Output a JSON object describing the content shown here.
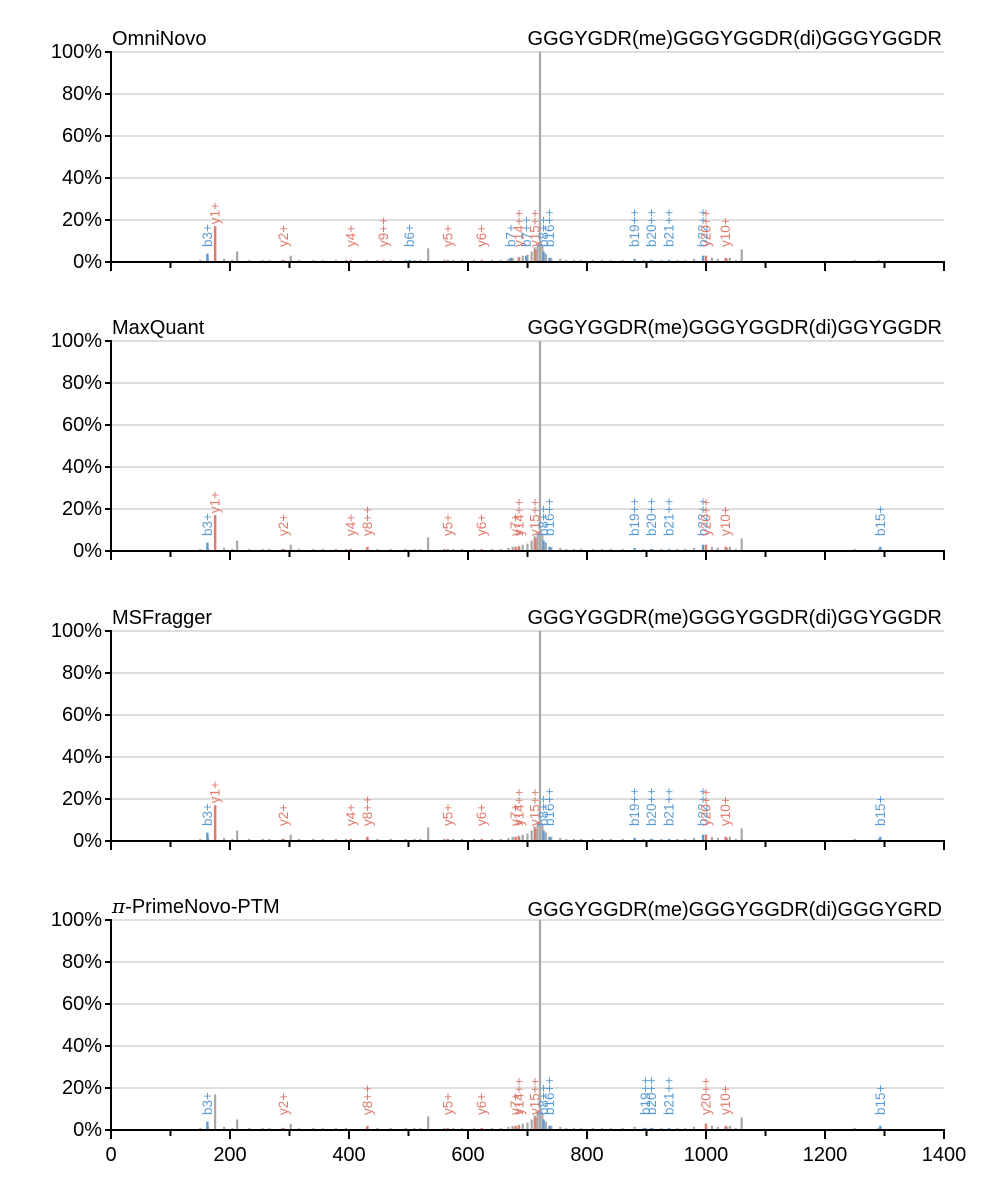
{
  "colors": {
    "b_ion": "#5b9bd5",
    "y_ion": "#e07a6b",
    "unmatched": "#a8a8a8",
    "grid": "#d3d3d3",
    "axis": "#000000"
  },
  "chart_data": {
    "type": "bar",
    "xlim": [
      0,
      1400
    ],
    "ylim": [
      0,
      100
    ],
    "x_ticks": [
      0,
      200,
      400,
      600,
      800,
      1000,
      1200,
      1400
    ],
    "y_ticks": [
      0,
      20,
      40,
      60,
      80,
      100
    ],
    "y_tick_labels": [
      "0%",
      "20%",
      "40%",
      "60%",
      "80%",
      "100%"
    ],
    "grid": "horizontal",
    "unmatched_peaks": [
      [
        150,
        1
      ],
      [
        163,
        1.5
      ],
      [
        175,
        17
      ],
      [
        190,
        1.5
      ],
      [
        204,
        1
      ],
      [
        212,
        5
      ],
      [
        232,
        1
      ],
      [
        255,
        1
      ],
      [
        266,
        1
      ],
      [
        288,
        1
      ],
      [
        302,
        3
      ],
      [
        316,
        1
      ],
      [
        340,
        1
      ],
      [
        356,
        1
      ],
      [
        378,
        1
      ],
      [
        395,
        1
      ],
      [
        430,
        1
      ],
      [
        448,
        1
      ],
      [
        470,
        1
      ],
      [
        495,
        1
      ],
      [
        510,
        1
      ],
      [
        520,
        1
      ],
      [
        533,
        6.5
      ],
      [
        560,
        1
      ],
      [
        575,
        1
      ],
      [
        590,
        1
      ],
      [
        610,
        1
      ],
      [
        640,
        1
      ],
      [
        655,
        1
      ],
      [
        668,
        1.5
      ],
      [
        675,
        2
      ],
      [
        685,
        2.5
      ],
      [
        692,
        3
      ],
      [
        700,
        3.5
      ],
      [
        707,
        5
      ],
      [
        712,
        7
      ],
      [
        717,
        9
      ],
      [
        721,
        100
      ],
      [
        725,
        8
      ],
      [
        731,
        4
      ],
      [
        740,
        2
      ],
      [
        755,
        1.5
      ],
      [
        765,
        1
      ],
      [
        778,
        1
      ],
      [
        790,
        1
      ],
      [
        810,
        1
      ],
      [
        825,
        1
      ],
      [
        840,
        1
      ],
      [
        860,
        1
      ],
      [
        880,
        1.5
      ],
      [
        895,
        1
      ],
      [
        910,
        1
      ],
      [
        925,
        1
      ],
      [
        952,
        1
      ],
      [
        965,
        1
      ],
      [
        980,
        1.5
      ],
      [
        1000,
        3
      ],
      [
        1010,
        2
      ],
      [
        1020,
        1.5
      ],
      [
        1035,
        1.5
      ],
      [
        1040,
        2
      ],
      [
        1050,
        1
      ],
      [
        1060,
        6
      ],
      [
        1250,
        1
      ],
      [
        1290,
        1
      ]
    ],
    "panels": [
      {
        "method": "OmniNovo",
        "sequence": "GGGYGDR(me)GGGYGGDR(di)GGGYGGDR",
        "peaks": [
          {
            "ion": "b3+",
            "type": "b",
            "mz": 162,
            "intensity": 4
          },
          {
            "ion": "y1+",
            "type": "y",
            "mz": 175,
            "intensity": 17
          },
          {
            "ion": "y2+",
            "type": "y",
            "mz": 290,
            "intensity": 1
          },
          {
            "ion": "y4+",
            "type": "y",
            "mz": 403,
            "intensity": 1
          },
          {
            "ion": "y9++",
            "type": "y",
            "mz": 458,
            "intensity": 1
          },
          {
            "ion": "b6+",
            "type": "b",
            "mz": 502,
            "intensity": 1
          },
          {
            "ion": "y5+",
            "type": "y",
            "mz": 566,
            "intensity": 1
          },
          {
            "ion": "y6+",
            "type": "y",
            "mz": 623,
            "intensity": 1
          },
          {
            "ion": "b7+",
            "type": "b",
            "mz": 672,
            "intensity": 2
          },
          {
            "ion": "y14++",
            "type": "y",
            "mz": 686,
            "intensity": 2
          },
          {
            "ion": "b7++",
            "type": "b",
            "mz": 698,
            "intensity": 3
          },
          {
            "ion": "y15++",
            "type": "y",
            "mz": 713,
            "intensity": 6
          },
          {
            "ion": "b8++",
            "type": "b",
            "mz": 727,
            "intensity": 5
          },
          {
            "ion": "b16++",
            "type": "b",
            "mz": 737,
            "intensity": 2
          },
          {
            "ion": "b19++",
            "type": "b",
            "mz": 880,
            "intensity": 1.5
          },
          {
            "ion": "b20++",
            "type": "b",
            "mz": 908,
            "intensity": 1
          },
          {
            "ion": "b21++",
            "type": "b",
            "mz": 938,
            "intensity": 1
          },
          {
            "ion": "b22++",
            "type": "b",
            "mz": 995,
            "intensity": 3
          },
          {
            "ion": "y20++",
            "type": "y",
            "mz": 1000,
            "intensity": 3
          },
          {
            "ion": "y10+",
            "type": "y",
            "mz": 1033,
            "intensity": 2
          }
        ]
      },
      {
        "method": "MaxQuant",
        "sequence": "GGGYGGDR(me)GGGYGGDR(di)GGYGGDR",
        "peaks": [
          {
            "ion": "b3+",
            "type": "b",
            "mz": 162,
            "intensity": 4
          },
          {
            "ion": "y1+",
            "type": "y",
            "mz": 175,
            "intensity": 17
          },
          {
            "ion": "y2+",
            "type": "y",
            "mz": 290,
            "intensity": 1
          },
          {
            "ion": "y4+",
            "type": "y",
            "mz": 403,
            "intensity": 1
          },
          {
            "ion": "y8++",
            "type": "y",
            "mz": 431,
            "intensity": 2
          },
          {
            "ion": "y5+",
            "type": "y",
            "mz": 566,
            "intensity": 1
          },
          {
            "ion": "y6+",
            "type": "y",
            "mz": 623,
            "intensity": 1
          },
          {
            "ion": "y7+",
            "type": "y",
            "mz": 680,
            "intensity": 2
          },
          {
            "ion": "y14++",
            "type": "y",
            "mz": 686,
            "intensity": 2
          },
          {
            "ion": "y15++",
            "type": "y",
            "mz": 713,
            "intensity": 6
          },
          {
            "ion": "b8++",
            "type": "b",
            "mz": 727,
            "intensity": 5
          },
          {
            "ion": "b16++",
            "type": "b",
            "mz": 737,
            "intensity": 2
          },
          {
            "ion": "b19++",
            "type": "b",
            "mz": 880,
            "intensity": 1.5
          },
          {
            "ion": "b20++",
            "type": "b",
            "mz": 908,
            "intensity": 1
          },
          {
            "ion": "b21++",
            "type": "b",
            "mz": 938,
            "intensity": 1
          },
          {
            "ion": "b22++",
            "type": "b",
            "mz": 995,
            "intensity": 3
          },
          {
            "ion": "y20++",
            "type": "y",
            "mz": 1000,
            "intensity": 3
          },
          {
            "ion": "y10+",
            "type": "y",
            "mz": 1033,
            "intensity": 2
          },
          {
            "ion": "b15+",
            "type": "b",
            "mz": 1293,
            "intensity": 2
          }
        ]
      },
      {
        "method": "MSFragger",
        "sequence": "GGGYGGDR(me)GGGYGGDR(di)GGYGGDR",
        "peaks": [
          {
            "ion": "b3+",
            "type": "b",
            "mz": 162,
            "intensity": 4
          },
          {
            "ion": "y1+",
            "type": "y",
            "mz": 175,
            "intensity": 17
          },
          {
            "ion": "y2+",
            "type": "y",
            "mz": 290,
            "intensity": 1
          },
          {
            "ion": "y4+",
            "type": "y",
            "mz": 403,
            "intensity": 1
          },
          {
            "ion": "y8++",
            "type": "y",
            "mz": 431,
            "intensity": 2
          },
          {
            "ion": "y5+",
            "type": "y",
            "mz": 566,
            "intensity": 1
          },
          {
            "ion": "y6+",
            "type": "y",
            "mz": 623,
            "intensity": 1
          },
          {
            "ion": "y7+",
            "type": "y",
            "mz": 680,
            "intensity": 2
          },
          {
            "ion": "y14++",
            "type": "y",
            "mz": 686,
            "intensity": 2
          },
          {
            "ion": "y15++",
            "type": "y",
            "mz": 713,
            "intensity": 6
          },
          {
            "ion": "b8++",
            "type": "b",
            "mz": 727,
            "intensity": 5
          },
          {
            "ion": "b16++",
            "type": "b",
            "mz": 737,
            "intensity": 2
          },
          {
            "ion": "b19++",
            "type": "b",
            "mz": 880,
            "intensity": 1.5
          },
          {
            "ion": "b20++",
            "type": "b",
            "mz": 908,
            "intensity": 1
          },
          {
            "ion": "b21++",
            "type": "b",
            "mz": 938,
            "intensity": 1
          },
          {
            "ion": "b22++",
            "type": "b",
            "mz": 995,
            "intensity": 3
          },
          {
            "ion": "y20++",
            "type": "y",
            "mz": 1000,
            "intensity": 3
          },
          {
            "ion": "y10+",
            "type": "y",
            "mz": 1033,
            "intensity": 2
          },
          {
            "ion": "b15+",
            "type": "b",
            "mz": 1293,
            "intensity": 2
          }
        ]
      },
      {
        "method": "π-PrimeNovo-PTM",
        "method_prefix": "π",
        "method_suffix": "-PrimeNovo-PTM",
        "sequence": "GGGYGGDR(me)GGGYGGDR(di)GGGYGRD",
        "peaks": [
          {
            "ion": "b3+",
            "type": "b",
            "mz": 162,
            "intensity": 4
          },
          {
            "ion": "y2+",
            "type": "y",
            "mz": 290,
            "intensity": 1
          },
          {
            "ion": "y8++",
            "type": "y",
            "mz": 431,
            "intensity": 2
          },
          {
            "ion": "y5+",
            "type": "y",
            "mz": 566,
            "intensity": 1
          },
          {
            "ion": "y6+",
            "type": "y",
            "mz": 623,
            "intensity": 1
          },
          {
            "ion": "y7+",
            "type": "y",
            "mz": 680,
            "intensity": 2
          },
          {
            "ion": "y14++",
            "type": "y",
            "mz": 686,
            "intensity": 2
          },
          {
            "ion": "y15++",
            "type": "y",
            "mz": 713,
            "intensity": 6
          },
          {
            "ion": "b8++",
            "type": "b",
            "mz": 727,
            "intensity": 5
          },
          {
            "ion": "b16++",
            "type": "b",
            "mz": 737,
            "intensity": 2
          },
          {
            "ion": "b19++",
            "type": "b",
            "mz": 898,
            "intensity": 1
          },
          {
            "ion": "b20++",
            "type": "b",
            "mz": 908,
            "intensity": 1
          },
          {
            "ion": "b21++",
            "type": "b",
            "mz": 938,
            "intensity": 1
          },
          {
            "ion": "y20++",
            "type": "y",
            "mz": 1000,
            "intensity": 3
          },
          {
            "ion": "y10+",
            "type": "y",
            "mz": 1033,
            "intensity": 2
          },
          {
            "ion": "b15+",
            "type": "b",
            "mz": 1293,
            "intensity": 2
          }
        ]
      }
    ]
  }
}
